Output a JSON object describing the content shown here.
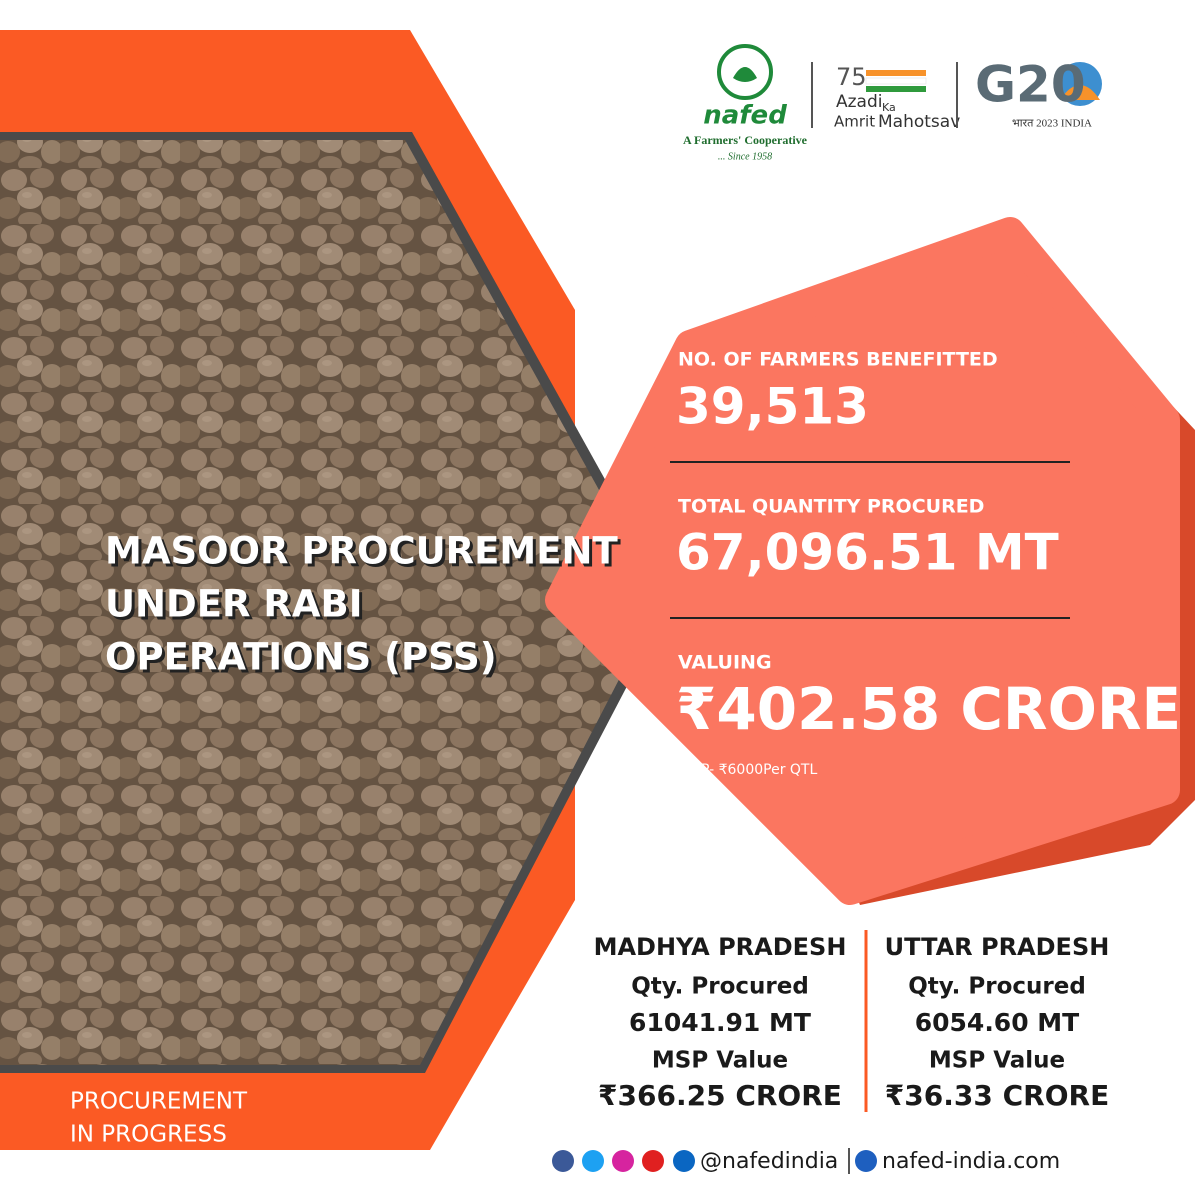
{
  "header": {
    "nafed": {
      "name": "nafed",
      "tagline": "A Farmers' Cooperative",
      "since": "... Since 1958"
    },
    "azadi": {
      "number": "75",
      "line1": "Azadi",
      "ka": "Ka",
      "line2": "Amrit",
      "line3": "Mahotsav"
    },
    "g20": {
      "name": "G20",
      "sub": "भारत 2023 INDIA"
    }
  },
  "title": [
    "MASOOR PROCUREMENT",
    "UNDER RABI",
    "OPERATIONS (PSS)"
  ],
  "stats": [
    {
      "label": "NO. OF FARMERS BENEFITTED",
      "value": "39,513"
    },
    {
      "label": "TOTAL QUANTITY PROCURED",
      "value": "67,096.51 MT"
    },
    {
      "label": "VALUING",
      "value": "₹402.58 CRORE"
    }
  ],
  "msp_note": "MSP- ₹6000Per QTL",
  "states": [
    {
      "name": "MADHYA PRADESH",
      "qty_label": "Qty. Procured",
      "qty": "61041.91 MT",
      "value_label": "MSP Value",
      "value": "₹366.25 CRORE"
    },
    {
      "name": "UTTAR PRADESH",
      "qty_label": "Qty. Procured",
      "qty": "6054.60 MT",
      "value_label": "MSP Value",
      "value": "₹36.33 CRORE"
    }
  ],
  "status": [
    "PROCUREMENT",
    "IN PROGRESS"
  ],
  "footer": {
    "handle": "@nafedindia",
    "website": "nafed-india.com"
  }
}
